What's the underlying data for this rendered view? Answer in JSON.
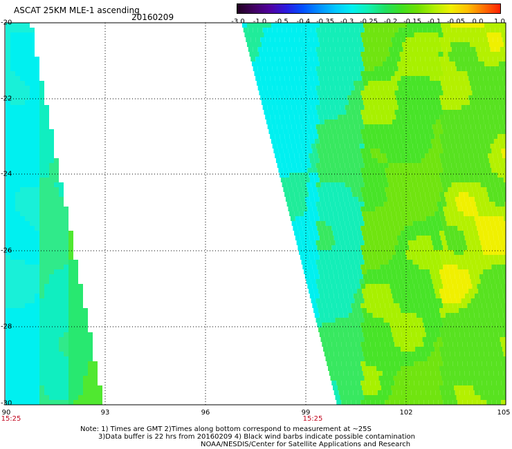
{
  "title": "ASCAT 25KM MLE-1 ascending",
  "date": "20160209",
  "colorbar": {
    "labels": [
      "-3.0",
      "-1.0",
      "-0.5",
      "-0.4",
      "-0.35",
      "-0.3",
      "-0.25",
      "-0.2",
      "-0.15",
      "-0.1",
      "-0.05",
      "0.0",
      "1.0"
    ],
    "colors": [
      "#200020",
      "#400060",
      "#5000a0",
      "#2a1ae0",
      "#0050ff",
      "#0090ff",
      "#00c8ff",
      "#00f0f0",
      "#10f0b0",
      "#20e060",
      "#40e020",
      "#70e000",
      "#b0f000",
      "#f0f000",
      "#ffc000",
      "#ff7000",
      "#ff2000"
    ]
  },
  "map": {
    "lat_labels": [
      "-20",
      "-22",
      "-24",
      "-26",
      "-28",
      "-30"
    ],
    "lon_labels": [
      "90",
      "93",
      "96",
      "99",
      "102",
      "105"
    ],
    "times": [
      "15:25",
      "15:25"
    ]
  },
  "notes": {
    "line1": "Note: 1) Times are GMT 2)Times along bottom correspond to measurement at ~25S",
    "line2": "3)Data buffer is 22 hrs from 20160209 4) Black wind barbs indicate possible contamination",
    "line3": "NOAA/NESDIS/Center for Satellite Applications and Research"
  }
}
